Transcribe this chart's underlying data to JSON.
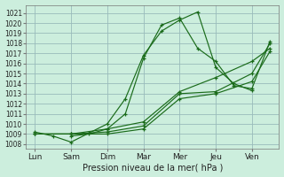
{
  "xlabel": "Pression niveau de la mer( hPa )",
  "background_color": "#cceedd",
  "grid_color": "#99bbbb",
  "line_color": "#1a6b1a",
  "ylim": [
    1007.5,
    1021.8
  ],
  "yticks": [
    1008,
    1009,
    1010,
    1011,
    1012,
    1013,
    1014,
    1015,
    1016,
    1017,
    1018,
    1019,
    1020,
    1021
  ],
  "xtick_labels": [
    "Lun",
    "Sam",
    "Dim",
    "Mar",
    "Mer",
    "Jeu",
    "Ven"
  ],
  "xtick_positions": [
    0,
    2,
    4,
    6,
    8,
    10,
    12
  ],
  "xlim": [
    -0.5,
    13.5
  ],
  "lines": [
    {
      "x": [
        0,
        1,
        2,
        3,
        4,
        5,
        6,
        7,
        8,
        9,
        10,
        11,
        12
      ],
      "y": [
        1009.2,
        1008.8,
        1008.2,
        1009.1,
        1010.0,
        1012.5,
        1016.8,
        1019.2,
        1020.3,
        1021.1,
        1015.6,
        1014.0,
        1013.3
      ]
    },
    {
      "x": [
        2,
        3,
        4,
        5,
        6,
        7,
        8,
        9,
        10,
        11,
        12,
        13
      ],
      "y": [
        1008.8,
        1009.0,
        1009.5,
        1011.0,
        1016.5,
        1019.8,
        1020.5,
        1017.5,
        1016.2,
        1013.8,
        1013.5,
        1018.2
      ]
    },
    {
      "x": [
        0,
        2,
        4,
        6,
        8,
        10,
        12,
        13
      ],
      "y": [
        1009.0,
        1009.0,
        1009.5,
        1010.2,
        1013.2,
        1014.6,
        1016.2,
        1017.5
      ]
    },
    {
      "x": [
        0,
        2,
        4,
        6,
        8,
        10,
        12,
        13
      ],
      "y": [
        1009.0,
        1009.0,
        1009.2,
        1009.8,
        1013.0,
        1013.2,
        1015.0,
        1018.0
      ]
    },
    {
      "x": [
        0,
        2,
        4,
        6,
        8,
        10,
        12,
        13
      ],
      "y": [
        1009.0,
        1009.0,
        1009.0,
        1009.5,
        1012.5,
        1013.0,
        1014.2,
        1017.2
      ]
    }
  ]
}
